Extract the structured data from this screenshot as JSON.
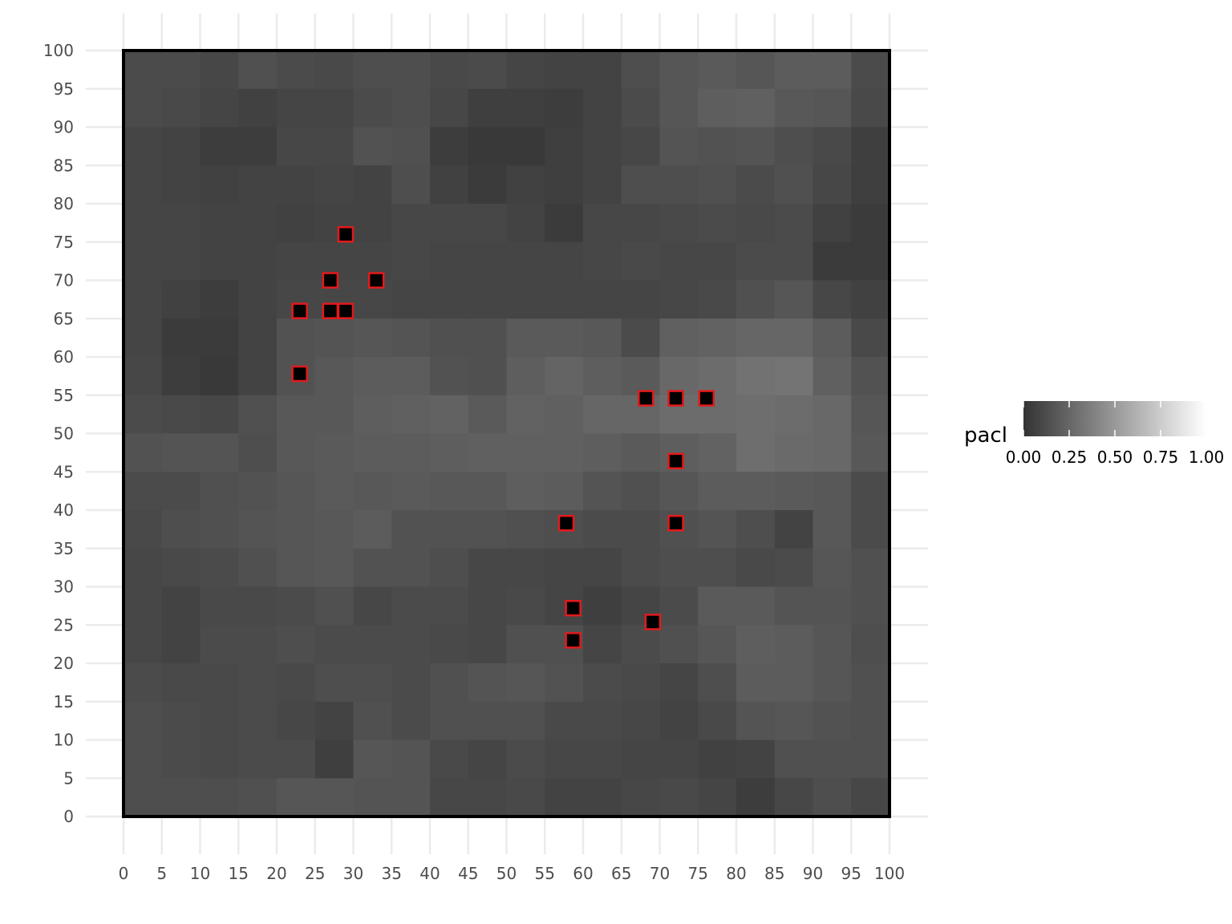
{
  "chart_data": {
    "type": "heatmap",
    "title": "",
    "xlabel": "",
    "ylabel": "",
    "xlim": [
      0,
      100
    ],
    "ylim": [
      0,
      100
    ],
    "grid": true,
    "x_ticks": [
      "0",
      "5",
      "10",
      "15",
      "20",
      "25",
      "30",
      "35",
      "40",
      "45",
      "50",
      "55",
      "60",
      "65",
      "70",
      "75",
      "80",
      "85",
      "90",
      "95",
      "100"
    ],
    "y_ticks": [
      "0",
      "5",
      "10",
      "15",
      "20",
      "25",
      "30",
      "35",
      "40",
      "45",
      "50",
      "55",
      "60",
      "65",
      "70",
      "75",
      "80",
      "85",
      "90",
      "95",
      "100"
    ],
    "cell_size": 5,
    "fill_name": "pacl",
    "fill_range": [
      0,
      1
    ],
    "fill_gradient": [
      "#333333",
      "#ffffff"
    ],
    "legend_labels": [
      "0.00",
      "0.25",
      "0.50",
      "0.75",
      "1.00"
    ],
    "legend_position": "right",
    "cell_rows_top_to_bottom": [
      [
        0.12,
        0.12,
        0.1,
        0.14,
        0.12,
        0.11,
        0.13,
        0.13,
        0.11,
        0.12,
        0.09,
        0.08,
        0.08,
        0.13,
        0.17,
        0.19,
        0.17,
        0.2,
        0.2,
        0.12
      ],
      [
        0.12,
        0.11,
        0.09,
        0.07,
        0.09,
        0.09,
        0.12,
        0.13,
        0.1,
        0.06,
        0.06,
        0.05,
        0.08,
        0.12,
        0.17,
        0.21,
        0.22,
        0.18,
        0.17,
        0.11
      ],
      [
        0.09,
        0.08,
        0.05,
        0.05,
        0.1,
        0.1,
        0.15,
        0.14,
        0.05,
        0.03,
        0.03,
        0.06,
        0.08,
        0.1,
        0.16,
        0.15,
        0.16,
        0.13,
        0.11,
        0.06
      ],
      [
        0.09,
        0.08,
        0.07,
        0.08,
        0.08,
        0.09,
        0.08,
        0.13,
        0.07,
        0.04,
        0.07,
        0.06,
        0.08,
        0.13,
        0.13,
        0.14,
        0.12,
        0.14,
        0.1,
        0.06
      ],
      [
        0.09,
        0.09,
        0.08,
        0.08,
        0.07,
        0.08,
        0.08,
        0.1,
        0.1,
        0.1,
        0.08,
        0.04,
        0.1,
        0.1,
        0.11,
        0.12,
        0.11,
        0.12,
        0.07,
        0.04
      ],
      [
        0.09,
        0.09,
        0.08,
        0.08,
        0.09,
        0.09,
        0.09,
        0.1,
        0.09,
        0.09,
        0.09,
        0.09,
        0.1,
        0.11,
        0.1,
        0.1,
        0.12,
        0.12,
        0.04,
        0.04
      ],
      [
        0.09,
        0.07,
        0.05,
        0.08,
        0.1,
        0.1,
        0.1,
        0.09,
        0.09,
        0.09,
        0.09,
        0.09,
        0.09,
        0.09,
        0.1,
        0.11,
        0.14,
        0.17,
        0.1,
        0.07
      ],
      [
        0.09,
        0.04,
        0.04,
        0.08,
        0.15,
        0.16,
        0.17,
        0.16,
        0.14,
        0.14,
        0.19,
        0.19,
        0.18,
        0.12,
        0.22,
        0.23,
        0.25,
        0.25,
        0.2,
        0.11
      ],
      [
        0.1,
        0.05,
        0.03,
        0.08,
        0.15,
        0.18,
        0.2,
        0.2,
        0.15,
        0.14,
        0.21,
        0.24,
        0.21,
        0.19,
        0.26,
        0.28,
        0.31,
        0.32,
        0.22,
        0.15
      ],
      [
        0.12,
        0.11,
        0.1,
        0.14,
        0.18,
        0.18,
        0.21,
        0.22,
        0.23,
        0.19,
        0.23,
        0.22,
        0.25,
        0.25,
        0.28,
        0.28,
        0.29,
        0.28,
        0.26,
        0.17
      ],
      [
        0.15,
        0.16,
        0.16,
        0.13,
        0.18,
        0.19,
        0.2,
        0.2,
        0.21,
        0.22,
        0.22,
        0.22,
        0.21,
        0.19,
        0.21,
        0.23,
        0.29,
        0.27,
        0.26,
        0.18
      ],
      [
        0.12,
        0.12,
        0.14,
        0.15,
        0.17,
        0.19,
        0.18,
        0.19,
        0.18,
        0.18,
        0.21,
        0.2,
        0.16,
        0.14,
        0.17,
        0.2,
        0.2,
        0.19,
        0.18,
        0.12
      ],
      [
        0.11,
        0.13,
        0.14,
        0.16,
        0.17,
        0.18,
        0.2,
        0.15,
        0.15,
        0.15,
        0.14,
        0.13,
        0.12,
        0.12,
        0.14,
        0.16,
        0.13,
        0.08,
        0.18,
        0.12
      ],
      [
        0.1,
        0.11,
        0.12,
        0.14,
        0.17,
        0.18,
        0.15,
        0.15,
        0.13,
        0.1,
        0.1,
        0.09,
        0.09,
        0.12,
        0.13,
        0.13,
        0.11,
        0.12,
        0.17,
        0.14
      ],
      [
        0.1,
        0.08,
        0.11,
        0.11,
        0.12,
        0.14,
        0.1,
        0.12,
        0.12,
        0.1,
        0.11,
        0.09,
        0.06,
        0.09,
        0.12,
        0.19,
        0.19,
        0.16,
        0.16,
        0.14
      ],
      [
        0.1,
        0.08,
        0.12,
        0.12,
        0.13,
        0.12,
        0.12,
        0.12,
        0.11,
        0.1,
        0.14,
        0.14,
        0.09,
        0.12,
        0.14,
        0.17,
        0.21,
        0.2,
        0.17,
        0.13
      ],
      [
        0.12,
        0.11,
        0.11,
        0.12,
        0.11,
        0.13,
        0.13,
        0.12,
        0.14,
        0.16,
        0.17,
        0.15,
        0.12,
        0.11,
        0.09,
        0.13,
        0.2,
        0.2,
        0.17,
        0.14
      ],
      [
        0.13,
        0.12,
        0.11,
        0.12,
        0.1,
        0.08,
        0.14,
        0.12,
        0.14,
        0.14,
        0.14,
        0.11,
        0.11,
        0.1,
        0.08,
        0.11,
        0.16,
        0.17,
        0.15,
        0.14
      ],
      [
        0.13,
        0.12,
        0.11,
        0.12,
        0.12,
        0.06,
        0.17,
        0.16,
        0.11,
        0.09,
        0.12,
        0.1,
        0.1,
        0.09,
        0.09,
        0.07,
        0.08,
        0.14,
        0.14,
        0.14
      ],
      [
        0.13,
        0.13,
        0.13,
        0.14,
        0.17,
        0.17,
        0.16,
        0.16,
        0.1,
        0.1,
        0.11,
        0.08,
        0.08,
        0.1,
        0.11,
        0.09,
        0.05,
        0.1,
        0.13,
        0.1
      ]
    ],
    "points": [
      {
        "x": 29.0,
        "y": 76.0
      },
      {
        "x": 27.0,
        "y": 70.0
      },
      {
        "x": 33.0,
        "y": 70.0
      },
      {
        "x": 23.0,
        "y": 66.0
      },
      {
        "x": 27.0,
        "y": 66.0
      },
      {
        "x": 29.0,
        "y": 66.0
      },
      {
        "x": 23.0,
        "y": 57.8
      },
      {
        "x": 68.2,
        "y": 54.6
      },
      {
        "x": 72.1,
        "y": 54.6
      },
      {
        "x": 76.1,
        "y": 54.6
      },
      {
        "x": 72.1,
        "y": 46.4
      },
      {
        "x": 57.8,
        "y": 38.3
      },
      {
        "x": 72.1,
        "y": 38.3
      },
      {
        "x": 58.7,
        "y": 27.2
      },
      {
        "x": 69.1,
        "y": 25.4
      },
      {
        "x": 58.7,
        "y": 23.0
      }
    ],
    "point_fill": "#000000",
    "point_outline": "#e31a1c",
    "border_color": "#000000",
    "grid_color": "#ebebeb"
  }
}
